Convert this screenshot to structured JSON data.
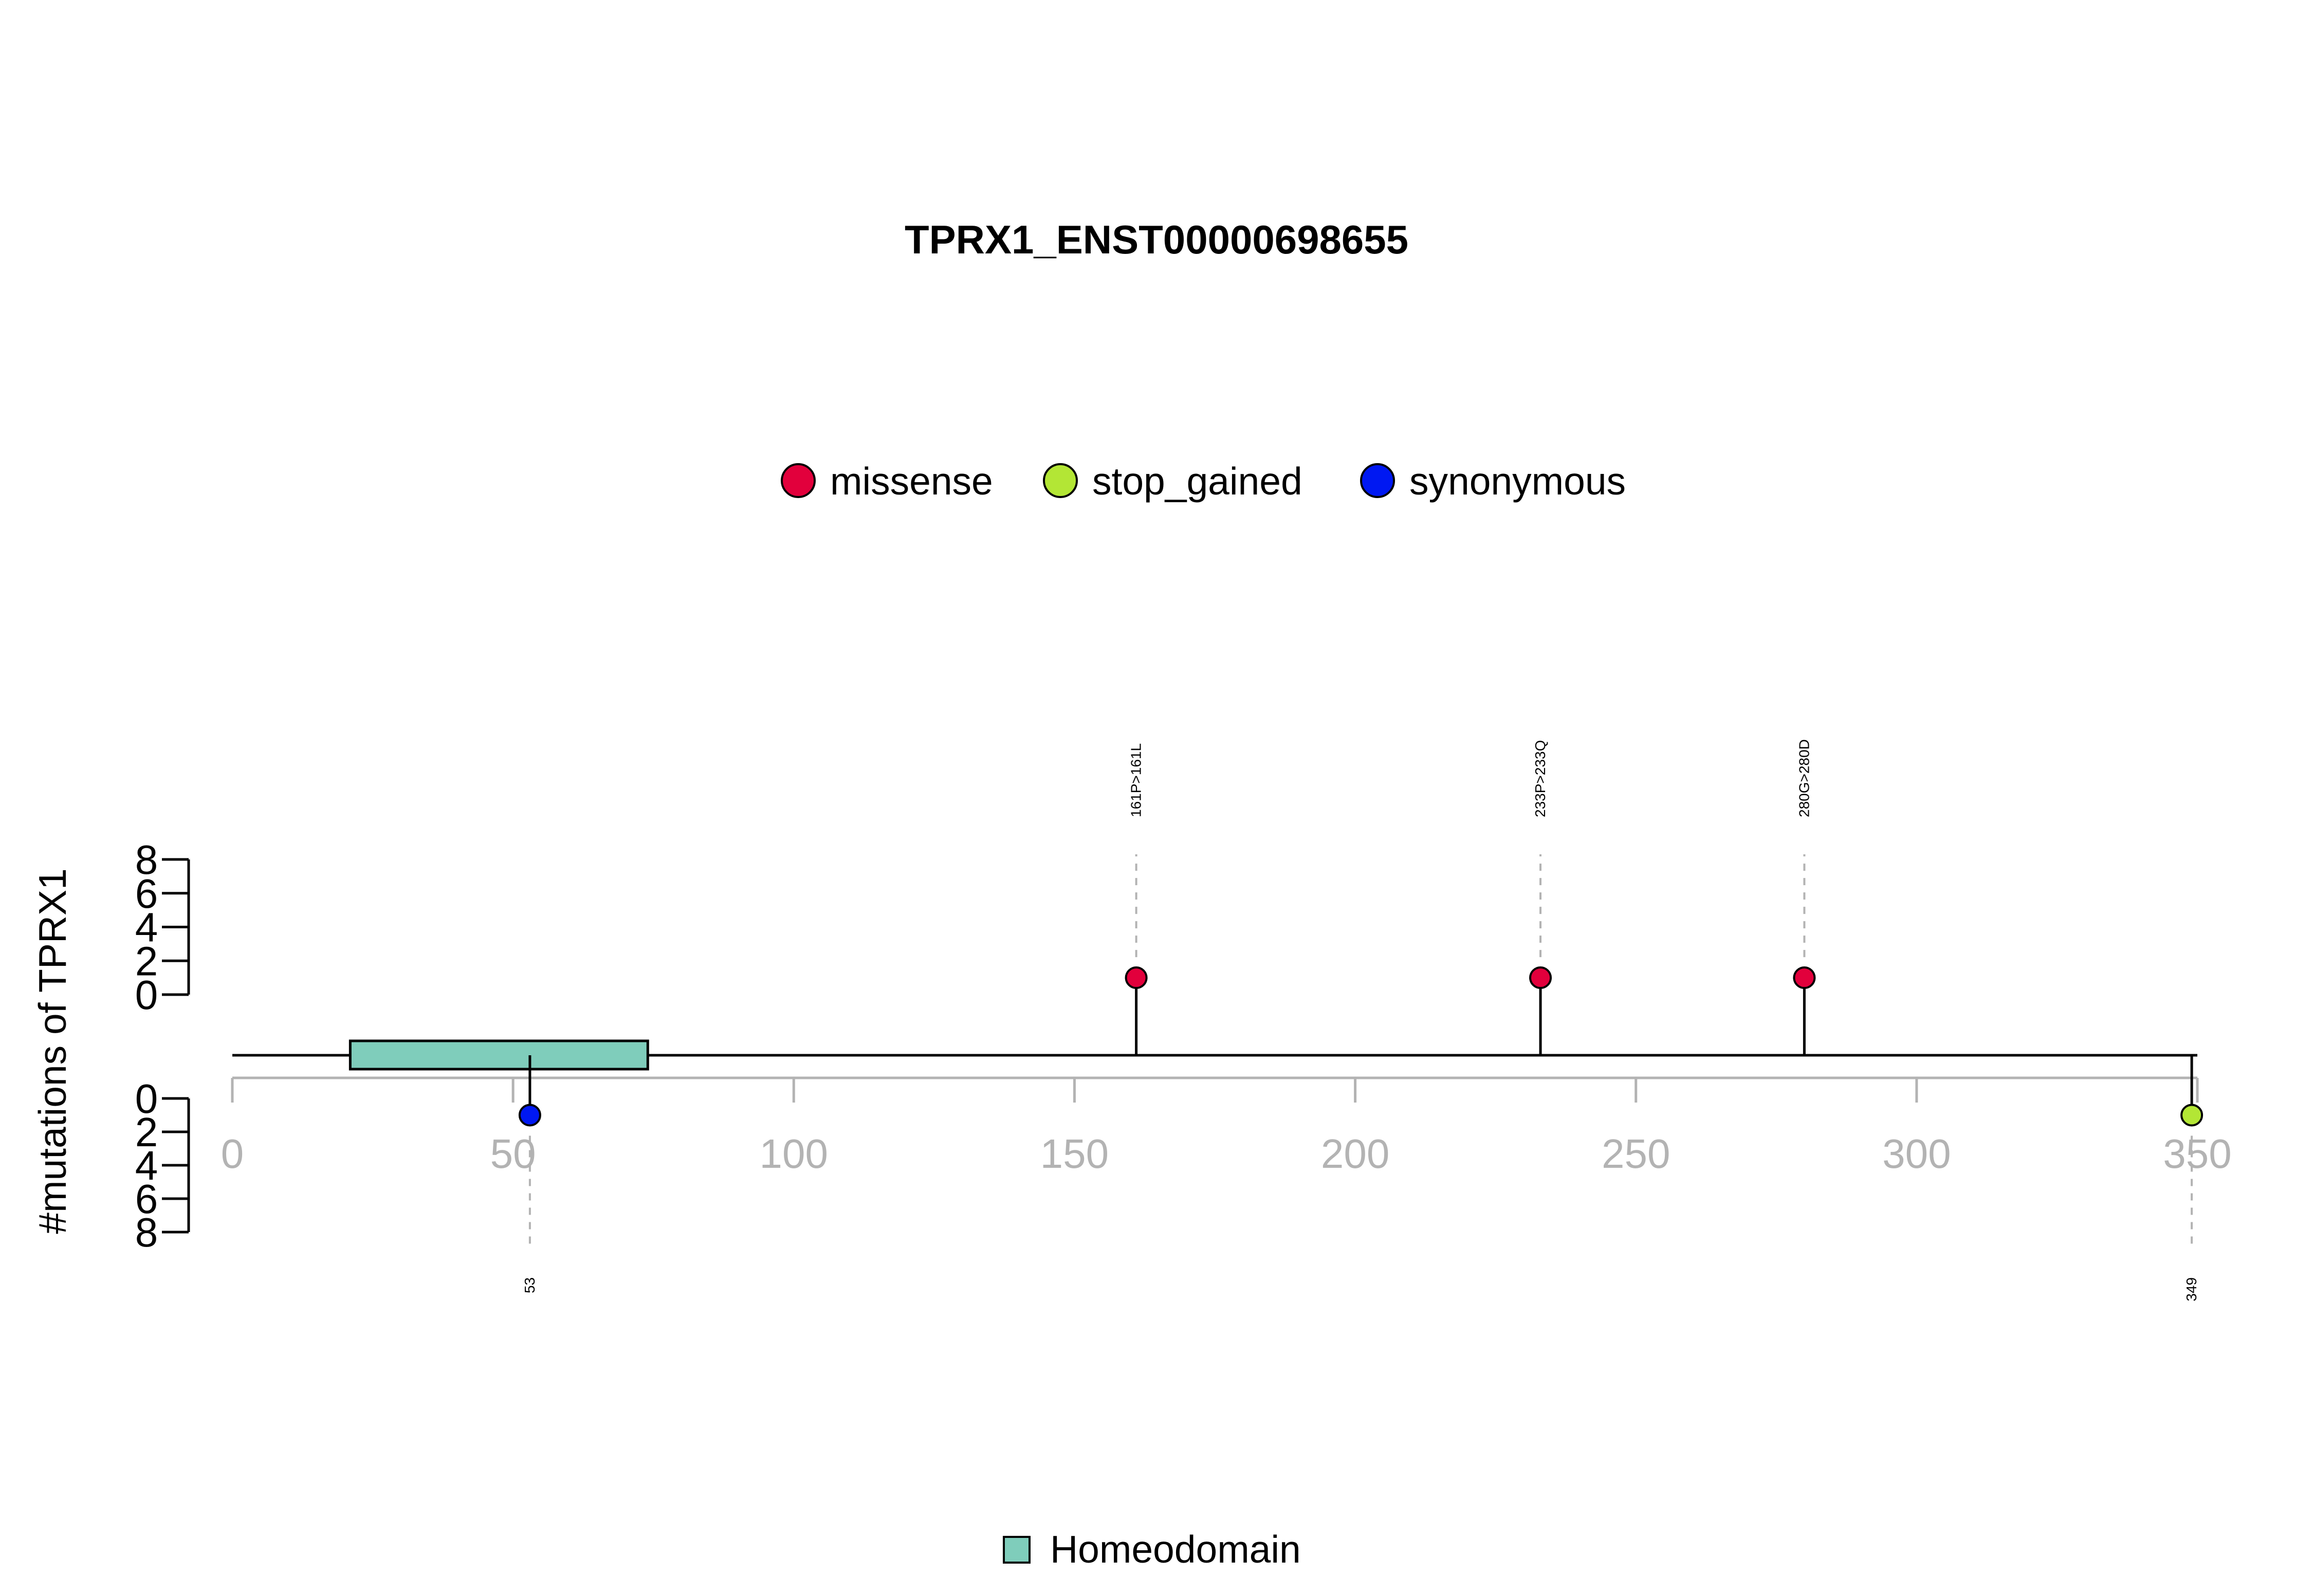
{
  "chart_data": {
    "type": "lollipop",
    "title": "TPRX1_ENST00000698655",
    "ylabel": "#mutations of TPRX1",
    "xlim": [
      0,
      350
    ],
    "x_ticks": [
      0,
      50,
      100,
      150,
      200,
      250,
      300,
      350
    ],
    "ylim_top": [
      0,
      8
    ],
    "ylim_bottom": [
      0,
      8
    ],
    "y_ticks_top": [
      0,
      2,
      4,
      6,
      8
    ],
    "y_ticks_bottom": [
      0,
      2,
      4,
      6,
      8
    ],
    "protein_length": 350,
    "legend_types": [
      {
        "name": "missense",
        "color": "#E2003C"
      },
      {
        "name": "stop_gained",
        "color": "#B3E635"
      },
      {
        "name": "synonymous",
        "color": "#0018F2"
      }
    ],
    "mutations": [
      {
        "position": 53,
        "count": 1,
        "type": "synonymous",
        "side": "bottom",
        "label": "53"
      },
      {
        "position": 161,
        "count": 1,
        "type": "missense",
        "side": "top",
        "label": "161P>161L"
      },
      {
        "position": 233,
        "count": 1,
        "type": "missense",
        "side": "top",
        "label": "233P>233Q"
      },
      {
        "position": 280,
        "count": 1,
        "type": "missense",
        "side": "top",
        "label": "280G>280D"
      },
      {
        "position": 349,
        "count": 1,
        "type": "stop_gained",
        "side": "bottom",
        "label": "349"
      }
    ],
    "domains": [
      {
        "name": "Homeodomain",
        "start": 21,
        "end": 74,
        "color": "#7FCDBB"
      }
    ],
    "domain_legend": [
      {
        "name": "Homeodomain",
        "color": "#7FCDBB"
      }
    ]
  }
}
